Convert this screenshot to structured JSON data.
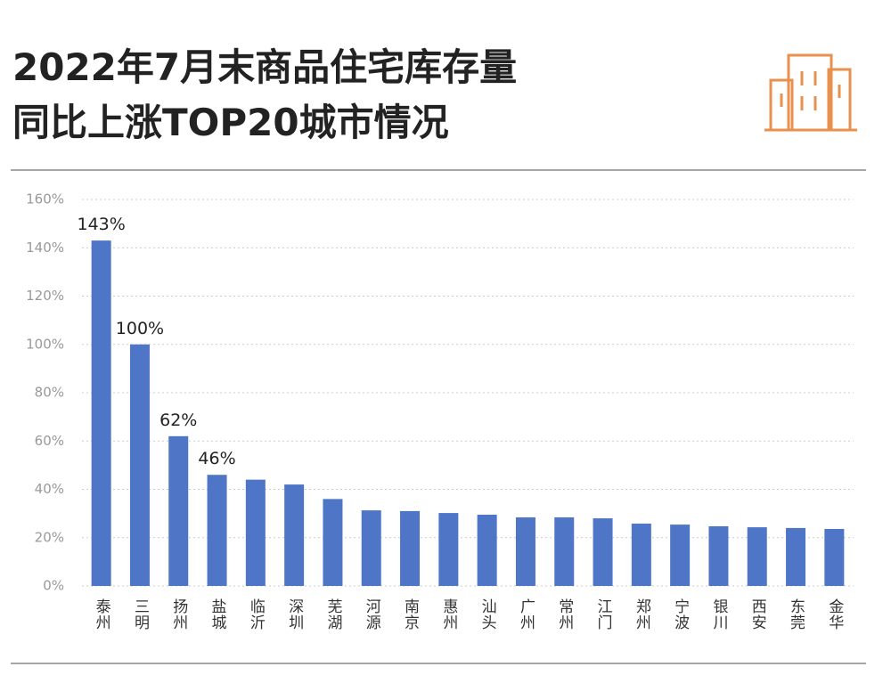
{
  "chart_data": {
    "type": "bar",
    "title": [
      "2022年7月末商品住宅库存量",
      "同比上涨TOP20城市情况"
    ],
    "categories": [
      "泰州",
      "三明",
      "扬州",
      "盐城",
      "临沂",
      "深圳",
      "芜湖",
      "河源",
      "南京",
      "惠州",
      "汕头",
      "广州",
      "常州",
      "江门",
      "郑州",
      "宁波",
      "银川",
      "西安",
      "东莞",
      "金华"
    ],
    "values": [
      143,
      100,
      62,
      46,
      44,
      42,
      36,
      31.3,
      31,
      30.2,
      29.5,
      28.4,
      28.4,
      28,
      25.8,
      25.4,
      24.7,
      24.3,
      24,
      23.6
    ],
    "value_labels": [
      "143%",
      "100%",
      "62%",
      "46%",
      null,
      null,
      null,
      null,
      null,
      null,
      null,
      null,
      null,
      null,
      null,
      null,
      null,
      null,
      null,
      null
    ],
    "color": "#4f76c6",
    "ylim": [
      0,
      160
    ],
    "yticks": [
      {
        "value": 0,
        "label": "0%"
      },
      {
        "value": 20,
        "label": "20%"
      },
      {
        "value": 40,
        "label": "40%"
      },
      {
        "value": 60,
        "label": "60%"
      },
      {
        "value": 80,
        "label": "80%"
      },
      {
        "value": 100,
        "label": "100%"
      },
      {
        "value": 120,
        "label": "120%"
      },
      {
        "value": 140,
        "label": "140%"
      },
      {
        "value": 160,
        "label": "160%"
      }
    ],
    "grid": true
  }
}
